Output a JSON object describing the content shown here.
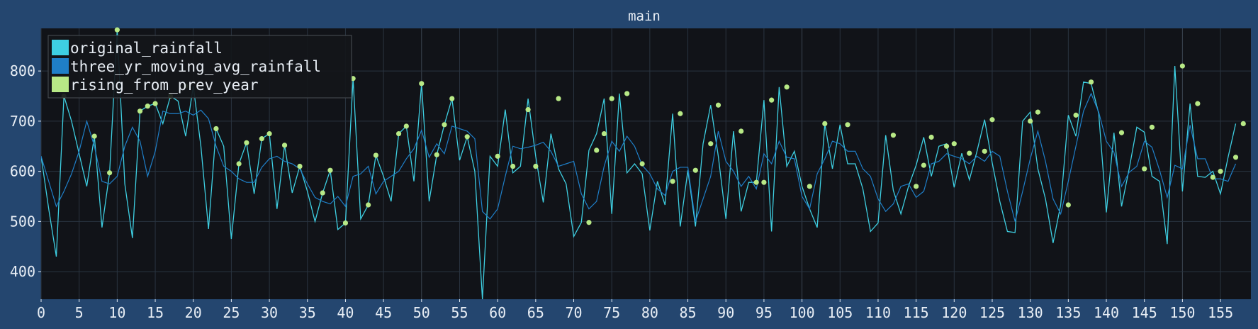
{
  "title": "main",
  "colors": {
    "window_bg": "#24466f",
    "plot_bg": "#111318",
    "grid": "#2a3440",
    "original": "#3ecfe2",
    "moving_avg": "#1f7fc8",
    "rising": "#b8e986",
    "text": "#e8eef5"
  },
  "legend": [
    {
      "label": "original_rainfall",
      "color": "#3ecfe2"
    },
    {
      "label": "three_yr_moving_avg_rainfall",
      "color": "#1f7fc8"
    },
    {
      "label": "rising_from_prev_year",
      "color": "#b8e986"
    }
  ],
  "chart_data": {
    "type": "line",
    "title": "main",
    "xlim": [
      0,
      159
    ],
    "ylim": [
      345,
      885
    ],
    "grid": true,
    "legend_position": "top-left",
    "x_ticks": [
      0,
      5,
      10,
      15,
      20,
      25,
      30,
      35,
      40,
      45,
      50,
      55,
      60,
      65,
      70,
      75,
      80,
      85,
      90,
      95,
      100,
      105,
      110,
      115,
      120,
      125,
      130,
      135,
      140,
      145,
      150,
      155
    ],
    "y_ticks": [
      400,
      500,
      600,
      700,
      800
    ],
    "series": [
      {
        "name": "original_rainfall",
        "kind": "line",
        "values": [
          630,
          525,
          430,
          750,
          700,
          635,
          570,
          670,
          488,
          597,
          882,
          575,
          467,
          720,
          730,
          735,
          695,
          750,
          740,
          670,
          770,
          650,
          485,
          685,
          650,
          465,
          615,
          657,
          555,
          665,
          675,
          525,
          652,
          557,
          610,
          560,
          500,
          557,
          602,
          484,
          497,
          785,
          505,
          533,
          632,
          590,
          540,
          675,
          690,
          580,
          775,
          540,
          633,
          693,
          745,
          622,
          669,
          600,
          345,
          630,
          610,
          723,
          597,
          610,
          745,
          630,
          538,
          675,
          605,
          575,
          470,
          498,
          642,
          675,
          745,
          515,
          755,
          597,
          615,
          595,
          482,
          580,
          533,
          715,
          490,
          602,
          490,
          655,
          732,
          630,
          505,
          680,
          520,
          578,
          578,
          742,
          480,
          768,
          610,
          640,
          570,
          525,
          488,
          695,
          605,
          693,
          615,
          615,
          565,
          480,
          497,
          672,
          562,
          515,
          570,
          612,
          668,
          590,
          650,
          655,
          568,
          636,
          583,
          640,
          703,
          617,
          540,
          480,
          478,
          700,
          718,
          605,
          545,
          457,
          533,
          712,
          670,
          778,
          775,
          715,
          518,
          677,
          530,
          605,
          688,
          678,
          590,
          580,
          455,
          810,
          560,
          735,
          590,
          588,
          600,
          555,
          628,
          695
        ]
      },
      {
        "name": "three_yr_moving_avg_rainfall",
        "kind": "line",
        "values": [
          630,
          580,
          530,
          560,
          595,
          640,
          700,
          650,
          580,
          575,
          590,
          650,
          688,
          660,
          590,
          640,
          720,
          715,
          715,
          720,
          712,
          722,
          705,
          650,
          610,
          600,
          585,
          578,
          578,
          608,
          625,
          630,
          620,
          615,
          605,
          575,
          548,
          540,
          535,
          550,
          530,
          590,
          595,
          610,
          555,
          580,
          590,
          600,
          625,
          645,
          682,
          628,
          655,
          635,
          690,
          685,
          680,
          665,
          520,
          505,
          525,
          590,
          650,
          645,
          648,
          652,
          658,
          640,
          610,
          615,
          620,
          555,
          525,
          540,
          610,
          660,
          640,
          670,
          650,
          612,
          595,
          565,
          552,
          600,
          608,
          608,
          500,
          545,
          590,
          680,
          620,
          600,
          570,
          590,
          565,
          635,
          615,
          660,
          628,
          625,
          550,
          525,
          595,
          625,
          660,
          655,
          640,
          640,
          605,
          590,
          545,
          520,
          535,
          570,
          575,
          548,
          560,
          615,
          620,
          635,
          630,
          625,
          615,
          630,
          620,
          640,
          630,
          560,
          500,
          560,
          625,
          680,
          620,
          545,
          515,
          580,
          650,
          720,
          755,
          718,
          660,
          638,
          570,
          598,
          610,
          660,
          648,
          602,
          548,
          612,
          605,
          692,
          625,
          625,
          585,
          585,
          580,
          615
        ]
      },
      {
        "name": "rising_from_prev_year",
        "kind": "scatter",
        "x": [
          3,
          7,
          9,
          10,
          13,
          14,
          15,
          17,
          19,
          23,
          26,
          27,
          29,
          30,
          32,
          34,
          37,
          38,
          40,
          41,
          43,
          44,
          47,
          48,
          50,
          52,
          53,
          54,
          56,
          60,
          62,
          64,
          65,
          68,
          72,
          73,
          74,
          75,
          77,
          79,
          83,
          84,
          86,
          88,
          89,
          92,
          94,
          95,
          96,
          98,
          101,
          103,
          106,
          112,
          115,
          116,
          117,
          119,
          120,
          122,
          124,
          125,
          130,
          131,
          135,
          136,
          138,
          142,
          145,
          146,
          150,
          152,
          154,
          155,
          157,
          158
        ],
        "y": [
          750,
          670,
          597,
          882,
          720,
          730,
          735,
          750,
          770,
          685,
          615,
          657,
          665,
          675,
          652,
          610,
          557,
          602,
          497,
          785,
          533,
          632,
          675,
          690,
          775,
          633,
          693,
          745,
          669,
          630,
          610,
          723,
          610,
          745,
          498,
          642,
          675,
          745,
          755,
          615,
          580,
          715,
          602,
          655,
          732,
          680,
          578,
          578,
          742,
          768,
          570,
          695,
          693,
          672,
          570,
          612,
          668,
          650,
          655,
          636,
          640,
          703,
          700,
          718,
          533,
          712,
          778,
          677,
          605,
          688,
          810,
          735,
          588,
          600,
          628,
          695
        ]
      }
    ]
  }
}
